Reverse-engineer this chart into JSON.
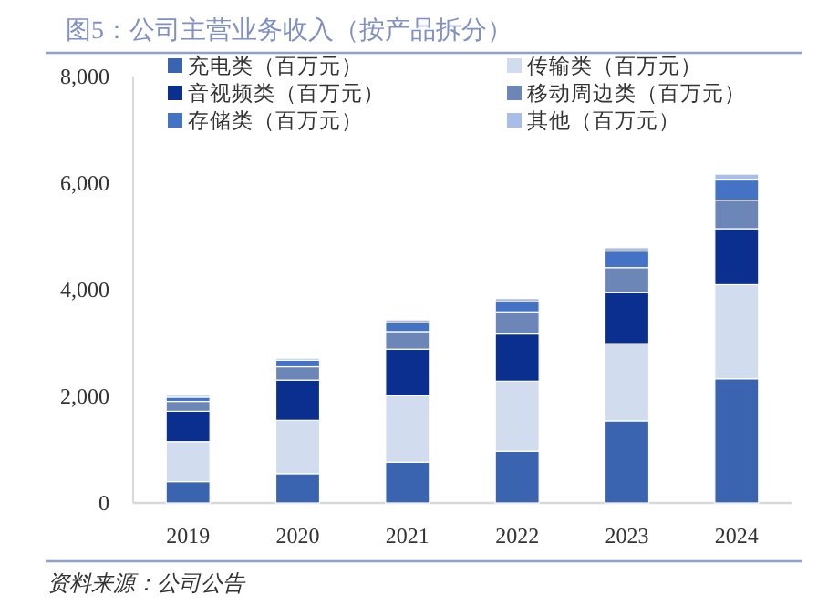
{
  "chart_data": {
    "type": "bar",
    "title": "图5：公司主营业务收入（按产品拆分）",
    "categories": [
      "2019",
      "2020",
      "2021",
      "2022",
      "2023",
      "2024"
    ],
    "stacked": true,
    "series": [
      {
        "name": "充电类（百万元）",
        "color": "#3a64b0",
        "values": [
          400,
          550,
          765,
          970,
          1540,
          2330
        ]
      },
      {
        "name": "传输类（百万元）",
        "color": "#d2dcef",
        "values": [
          750,
          1000,
          1245,
          1315,
          1450,
          1765
        ]
      },
      {
        "name": "音视频类（百万元）",
        "color": "#0b2f8f",
        "values": [
          570,
          755,
          875,
          885,
          955,
          1050
        ]
      },
      {
        "name": "移动周边类（百万元）",
        "color": "#6d86b8",
        "values": [
          185,
          250,
          330,
          415,
          470,
          535
        ]
      },
      {
        "name": "存储类（百万元）",
        "color": "#4472c4",
        "values": [
          80,
          125,
          165,
          190,
          310,
          380
        ]
      },
      {
        "name": "其他（百万元）",
        "color": "#a9bde6",
        "values": [
          35,
          35,
          55,
          60,
          65,
          110
        ]
      }
    ],
    "ylim": [
      0,
      8000
    ],
    "yticks": [
      {
        "value": 0,
        "label": "0"
      },
      {
        "value": 2000,
        "label": "2,000"
      },
      {
        "value": 4000,
        "label": "4,000"
      },
      {
        "value": 6000,
        "label": "6,000"
      },
      {
        "value": 8000,
        "label": "8,000"
      }
    ],
    "legend": "top",
    "annotations": [
      "资料来源：公司公告"
    ]
  }
}
